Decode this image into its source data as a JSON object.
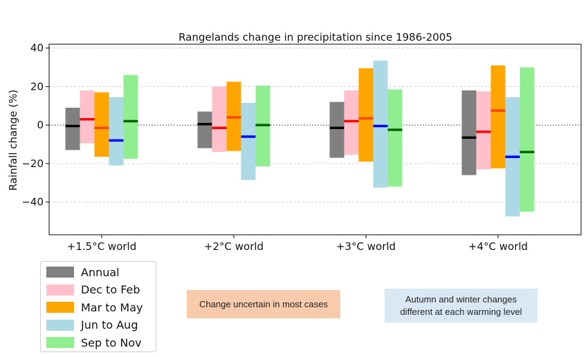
{
  "chart_data": {
    "type": "bar",
    "title": "Rangelands change in precipitation since 1986-2005",
    "xlabel": "",
    "ylabel": "Rainfall change (%)",
    "ylim": [
      -57,
      42
    ],
    "yticks": [
      40,
      20,
      0,
      -20,
      -40
    ],
    "ytick_labels": [
      "40",
      "20",
      "0",
      "−20",
      "−40"
    ],
    "categories": [
      "+1.5°C world",
      "+2°C world",
      "+3°C world",
      "+4°C world"
    ],
    "zero_line": "dotted",
    "series": [
      {
        "name": "Annual",
        "color": "#808080",
        "median_color": "#000000",
        "low": [
          -13,
          -12,
          -17,
          -26
        ],
        "high": [
          9,
          7,
          12,
          18
        ],
        "median": [
          -0.5,
          0.5,
          -1.5,
          -6.5
        ]
      },
      {
        "name": "Dec to Feb",
        "color": "#ffc0cb",
        "median_color": "#ff0000",
        "low": [
          -9.5,
          -14,
          -15.5,
          -23
        ],
        "high": [
          18,
          20,
          18,
          17.5
        ],
        "median": [
          3,
          -1.5,
          2,
          -3.5
        ]
      },
      {
        "name": "Mar to May",
        "color": "#ffa500",
        "median_color": "#ff4500",
        "low": [
          -16.5,
          -13.5,
          -19,
          -22.5
        ],
        "high": [
          17,
          22.5,
          29.5,
          31
        ],
        "median": [
          -1.5,
          4,
          3.5,
          7.5
        ]
      },
      {
        "name": "Jun to Aug",
        "color": "#add8e6",
        "median_color": "#0000ff",
        "low": [
          -21,
          -28.5,
          -32.5,
          -47.5
        ],
        "high": [
          14.5,
          11.5,
          33.5,
          14.5
        ],
        "median": [
          -8,
          -6,
          -0.5,
          -16.5
        ]
      },
      {
        "name": "Sep to Nov",
        "color": "#90ee90",
        "median_color": "#006400",
        "low": [
          -17.5,
          -21.5,
          -32,
          -45
        ],
        "high": [
          26,
          20.5,
          18.5,
          30
        ],
        "median": [
          2,
          0,
          -2.5,
          -14
        ]
      }
    ],
    "legend_position": "bottom-left"
  },
  "notes": {
    "orange": {
      "text": "Change uncertain in most cases",
      "color": "#f8cbad"
    },
    "blue": {
      "line1": "Autumn and winter changes",
      "line2": "different at each warming level",
      "color": "#dae8f4"
    }
  }
}
